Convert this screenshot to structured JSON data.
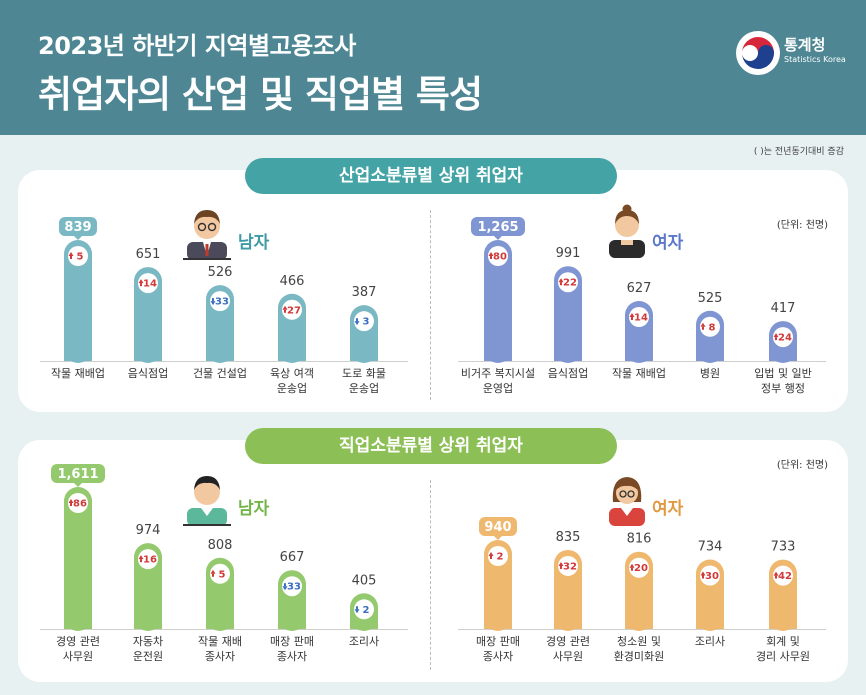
{
  "header": {
    "title_line1": "2023년 하반기 지역별고용조사",
    "title_line2": "취업자의 산업 및 직업별 특성",
    "logo_text": "통계청",
    "logo_sub": "Statistics Korea"
  },
  "note": "( )는 전년동기대비 증감",
  "colors": {
    "header_bg": "#4e8793",
    "industry_pill": "#44a3a5",
    "occupation_pill": "#8cbf55",
    "industry_male": "#7ab8c3",
    "industry_female": "#7f96d2",
    "occupation_male": "#94c96e",
    "occupation_female": "#efb86f",
    "increase": "#d23a3a",
    "decrease": "#3a6fc2"
  },
  "chart_data": [
    {
      "type": "bar",
      "title": "산업소분류별 상위 취업자",
      "group": "남자",
      "unit": "(단위: 천명)",
      "categories": [
        "작물 재배업",
        "음식점업",
        "건물 건설업",
        "육상 여객 운송업",
        "도로 화물 운송업"
      ],
      "values": [
        839,
        651,
        526,
        466,
        387
      ],
      "changes": [
        5,
        14,
        -33,
        27,
        -3
      ],
      "change_labels": [
        "5",
        "14",
        "33",
        "27",
        "3"
      ]
    },
    {
      "type": "bar",
      "title": "산업소분류별 상위 취업자",
      "group": "여자",
      "unit": "(단위: 천명)",
      "categories": [
        "비거주 복지시설 운영업",
        "음식점업",
        "작물 재배업",
        "병원",
        "입법 및 일반 정부 행정"
      ],
      "values": [
        1265,
        991,
        627,
        525,
        417
      ],
      "changes": [
        80,
        22,
        14,
        8,
        24
      ],
      "change_labels": [
        "80",
        "22",
        "14",
        "8",
        "24"
      ]
    },
    {
      "type": "bar",
      "title": "직업소분류별 상위 취업자",
      "group": "남자",
      "unit": "(단위: 천명)",
      "categories": [
        "경영 관련 사무원",
        "자동차 운전원",
        "작물 재배 종사자",
        "매장 판매 종사자",
        "조리사"
      ],
      "values": [
        1611,
        974,
        808,
        667,
        405
      ],
      "changes": [
        86,
        16,
        5,
        -33,
        -2
      ],
      "change_labels": [
        "86",
        "16",
        "5",
        "33",
        "2"
      ]
    },
    {
      "type": "bar",
      "title": "직업소분류별 상위 취업자",
      "group": "여자",
      "unit": "(단위: 천명)",
      "categories": [
        "매장 판매 종사자",
        "경영 관련 사무원",
        "청소원 및 환경미화원",
        "조리사",
        "회계 및 경리 사무원"
      ],
      "values": [
        940,
        835,
        816,
        734,
        733
      ],
      "changes": [
        2,
        32,
        20,
        30,
        42
      ],
      "change_labels": [
        "2",
        "32",
        "20",
        "30",
        "42"
      ]
    }
  ],
  "label_lines": [
    [
      [
        "작물 재배업"
      ],
      [
        "음식점업"
      ],
      [
        "건물 건설업"
      ],
      [
        "육상 여객",
        "운송업"
      ],
      [
        "도로 화물",
        "운송업"
      ]
    ],
    [
      [
        "비거주 복지시설",
        "운영업"
      ],
      [
        "음식점업"
      ],
      [
        "작물 재배업"
      ],
      [
        "병원"
      ],
      [
        "입법 및 일반",
        "정부 행정"
      ]
    ],
    [
      [
        "경영 관련",
        "사무원"
      ],
      [
        "자동차",
        "운전원"
      ],
      [
        "작물 재배",
        "종사자"
      ],
      [
        "매장 판매",
        "종사자"
      ],
      [
        "조리사"
      ]
    ],
    [
      [
        "매장 판매",
        "종사자"
      ],
      [
        "경영 관련",
        "사무원"
      ],
      [
        "청소원 및",
        "환경미화원"
      ],
      [
        "조리사"
      ],
      [
        "회계 및",
        "경리 사무원"
      ]
    ]
  ]
}
